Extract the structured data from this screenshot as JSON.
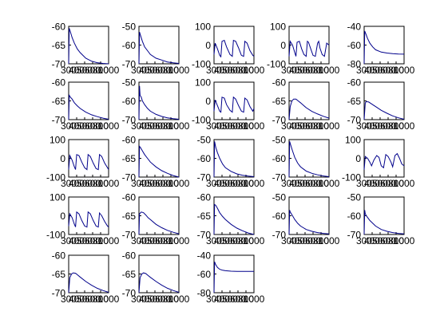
{
  "chart_data": {
    "type": "line",
    "grid": false,
    "legend": "none",
    "line_color": "#00008B",
    "axis_color": "#000000",
    "panels": [
      {
        "ylim": [
          -70,
          -60
        ],
        "yticks": [
          "-60",
          "-65",
          "-70"
        ],
        "xticks": [
          "300",
          "400",
          "500",
          "600",
          "800",
          "1000"
        ],
        "x": [
          300,
          310,
          320,
          340,
          360,
          400,
          450,
          500,
          600,
          700,
          800,
          900,
          1000
        ],
        "y": [
          -70,
          -60.5,
          -61,
          -62,
          -63,
          -64.5,
          -66,
          -67,
          -68.5,
          -69.3,
          -69.7,
          -69.9,
          -70
        ]
      },
      {
        "ylim": [
          -70,
          -50
        ],
        "yticks": [
          "-50",
          "-60",
          "-70"
        ],
        "xticks": [
          "300",
          "400",
          "500",
          "600",
          "800",
          "1000"
        ],
        "x": [
          300,
          310,
          330,
          360,
          400,
          450,
          500,
          600,
          700,
          800,
          900,
          1000
        ],
        "y": [
          -70,
          -53,
          -55,
          -58,
          -61,
          -63,
          -65,
          -67,
          -68,
          -69,
          -69.5,
          -69.8
        ]
      },
      {
        "ylim": [
          -100,
          100
        ],
        "yticks": [
          "100",
          "0",
          "-100"
        ],
        "xticks": [
          "300",
          "400",
          "500",
          "600",
          "800",
          "1000"
        ],
        "x": [
          300,
          320,
          360,
          400,
          420,
          440,
          480,
          520,
          580,
          620,
          640,
          680,
          730,
          780,
          820,
          840,
          880,
          930,
          980,
          1000
        ],
        "y": [
          -50,
          10,
          -20,
          -55,
          -62,
          20,
          25,
          -10,
          -50,
          -60,
          25,
          20,
          -15,
          -55,
          -60,
          20,
          10,
          -30,
          -55,
          -60
        ]
      },
      {
        "ylim": [
          -100,
          100
        ],
        "yticks": [
          "100",
          "0",
          "-100"
        ],
        "xticks": [
          "300",
          "400",
          "500",
          "600",
          "800",
          "1000"
        ],
        "x": [
          300,
          320,
          360,
          400,
          420,
          440,
          480,
          520,
          560,
          600,
          620,
          640,
          680,
          720,
          760,
          800,
          820,
          840,
          880,
          920,
          960,
          1000
        ],
        "y": [
          -60,
          20,
          0,
          -40,
          -60,
          15,
          20,
          -20,
          -50,
          -60,
          20,
          15,
          -20,
          -55,
          -60,
          10,
          20,
          -15,
          -50,
          -60,
          10,
          0
        ]
      },
      {
        "ylim": [
          -80,
          -40
        ],
        "yticks": [
          "-40",
          "-60",
          "-80"
        ],
        "xticks": [
          "300",
          "400",
          "500",
          "600",
          "800",
          "1000"
        ],
        "x": [
          300,
          310,
          330,
          360,
          400,
          450,
          500,
          600,
          700,
          800,
          900,
          1000
        ],
        "y": [
          -80,
          -45,
          -48,
          -53,
          -58,
          -62,
          -65,
          -67.5,
          -68.5,
          -69.2,
          -69.5,
          -69.7
        ]
      },
      {
        "ylim": [
          -70,
          -60
        ],
        "yticks": [
          "-60",
          "-65",
          "-70"
        ],
        "xticks": [
          "300",
          "400",
          "500",
          "600",
          "800",
          "1000"
        ],
        "x": [
          300,
          310,
          330,
          360,
          400,
          450,
          500,
          600,
          700,
          800,
          900,
          1000
        ],
        "y": [
          -70,
          -63.5,
          -64,
          -64.5,
          -65.5,
          -66.3,
          -67,
          -68,
          -68.7,
          -69.2,
          -69.6,
          -69.9
        ]
      },
      {
        "ylim": [
          -70,
          -50
        ],
        "yticks": [
          "-50",
          "-60",
          "-70"
        ],
        "xticks": [
          "300",
          "400",
          "500",
          "600",
          "800",
          "1000"
        ],
        "x": [
          300,
          310,
          320,
          340,
          360,
          400,
          450,
          500,
          600,
          700,
          800,
          900,
          1000
        ],
        "y": [
          -70,
          -52,
          -57,
          -58,
          -60,
          -62,
          -64,
          -65.5,
          -67.2,
          -68.3,
          -69,
          -69.5,
          -69.8
        ]
      },
      {
        "ylim": [
          -100,
          100
        ],
        "yticks": [
          "100",
          "0",
          "-100"
        ],
        "xticks": [
          "300",
          "400",
          "500",
          "600",
          "800",
          "1000"
        ],
        "x": [
          300,
          320,
          360,
          400,
          420,
          440,
          480,
          520,
          580,
          620,
          640,
          680,
          730,
          780,
          820,
          840,
          880,
          930,
          980,
          1000
        ],
        "y": [
          -55,
          5,
          -25,
          -55,
          -60,
          20,
          15,
          -20,
          -50,
          -60,
          20,
          10,
          -25,
          -55,
          -60,
          15,
          5,
          -30,
          -55,
          -40
        ]
      },
      {
        "ylim": [
          -70,
          -60
        ],
        "yticks": [
          "-60",
          "-65",
          "-70"
        ],
        "xticks": [
          "300",
          "400",
          "500",
          "600",
          "800",
          "1000"
        ],
        "x": [
          300,
          320,
          350,
          380,
          420,
          460,
          500,
          600,
          700,
          800,
          900,
          1000
        ],
        "y": [
          -70,
          -66.5,
          -65,
          -64.5,
          -64.5,
          -65,
          -65.5,
          -66.8,
          -67.8,
          -68.5,
          -69.1,
          -69.6
        ]
      },
      {
        "ylim": [
          -70,
          -60
        ],
        "yticks": [
          "-60",
          "-65",
          "-70"
        ],
        "xticks": [
          "300",
          "400",
          "500",
          "600",
          "800",
          "1000"
        ],
        "x": [
          300,
          320,
          340,
          380,
          420,
          460,
          500,
          600,
          700,
          800,
          900,
          1000
        ],
        "y": [
          -70,
          -65.5,
          -65.2,
          -65.3,
          -65.7,
          -66.1,
          -66.5,
          -67.5,
          -68.3,
          -69,
          -69.5,
          -69.9
        ]
      },
      {
        "ylim": [
          -100,
          100
        ],
        "yticks": [
          "100",
          "0",
          "-100"
        ],
        "xticks": [
          "300",
          "400",
          "500",
          "600",
          "800",
          "1000"
        ],
        "x": [
          300,
          320,
          360,
          400,
          420,
          440,
          480,
          530,
          580,
          620,
          640,
          680,
          730,
          780,
          820,
          840,
          880,
          930,
          980,
          1000
        ],
        "y": [
          -60,
          15,
          -10,
          -45,
          -60,
          20,
          15,
          -20,
          -50,
          -60,
          20,
          10,
          -25,
          -55,
          -60,
          20,
          10,
          -25,
          -50,
          -60
        ]
      },
      {
        "ylim": [
          -70,
          -60
        ],
        "yticks": [
          "-60",
          "-65",
          "-70"
        ],
        "xticks": [
          "300",
          "400",
          "500",
          "600",
          "800",
          "1000"
        ],
        "x": [
          300,
          310,
          330,
          360,
          400,
          450,
          500,
          600,
          700,
          800,
          900,
          1000
        ],
        "y": [
          -70,
          -61.8,
          -62.2,
          -63,
          -64,
          -65,
          -66,
          -67.3,
          -68.3,
          -69,
          -69.6,
          -70
        ]
      },
      {
        "ylim": [
          -70,
          -50
        ],
        "yticks": [
          "-50",
          "-60",
          "-70"
        ],
        "xticks": [
          "300",
          "400",
          "500",
          "600",
          "800",
          "1000"
        ],
        "x": [
          300,
          310,
          330,
          360,
          400,
          450,
          500,
          600,
          700,
          800,
          900,
          1000
        ],
        "y": [
          -70,
          -51,
          -54,
          -57,
          -60,
          -63,
          -65,
          -67,
          -68.3,
          -69,
          -69.5,
          -69.8
        ]
      },
      {
        "ylim": [
          -70,
          -50
        ],
        "yticks": [
          "-50",
          "-60",
          "-70"
        ],
        "xticks": [
          "300",
          "400",
          "500",
          "600",
          "800",
          "1000"
        ],
        "x": [
          300,
          310,
          330,
          360,
          400,
          450,
          500,
          600,
          700,
          800,
          900,
          1000
        ],
        "y": [
          -70,
          -51,
          -53,
          -56,
          -59.5,
          -62.5,
          -64.5,
          -66.8,
          -68,
          -68.8,
          -69.4,
          -69.8
        ]
      },
      {
        "ylim": [
          -100,
          100
        ],
        "yticks": [
          "100",
          "0",
          "-100"
        ],
        "xticks": [
          "300",
          "400",
          "500",
          "600",
          "800",
          "1000"
        ],
        "x": [
          300,
          320,
          360,
          400,
          430,
          470,
          520,
          560,
          600,
          640,
          680,
          720,
          770,
          800,
          840,
          880,
          920,
          960,
          1000
        ],
        "y": [
          -60,
          10,
          0,
          -20,
          -40,
          -10,
          15,
          5,
          -40,
          -50,
          20,
          10,
          -20,
          -45,
          15,
          25,
          0,
          -30,
          -40
        ]
      },
      {
        "ylim": [
          -100,
          100
        ],
        "yticks": [
          "100",
          "0",
          "-100"
        ],
        "xticks": [
          "300",
          "400",
          "500",
          "600",
          "800",
          "1000"
        ],
        "x": [
          300,
          320,
          360,
          400,
          420,
          440,
          480,
          530,
          580,
          620,
          640,
          680,
          730,
          780,
          820,
          840,
          880,
          930,
          980,
          1000
        ],
        "y": [
          -55,
          10,
          -10,
          -45,
          -60,
          20,
          10,
          -25,
          -55,
          -60,
          20,
          10,
          -25,
          -55,
          -60,
          15,
          0,
          -30,
          -55,
          -60
        ]
      },
      {
        "ylim": [
          -70,
          -60
        ],
        "yticks": [
          "-60",
          "-65",
          "-70"
        ],
        "xticks": [
          "300",
          "400",
          "500",
          "600",
          "800",
          "1000"
        ],
        "x": [
          300,
          310,
          340,
          380,
          420,
          460,
          500,
          600,
          700,
          800,
          900,
          1000
        ],
        "y": [
          -70,
          -64.5,
          -64,
          -64.2,
          -64.8,
          -65.5,
          -66,
          -67.3,
          -68.2,
          -68.9,
          -69.4,
          -69.8
        ]
      },
      {
        "ylim": [
          -70,
          -60
        ],
        "yticks": [
          "-60",
          "-65",
          "-70"
        ],
        "xticks": [
          "300",
          "400",
          "500",
          "600",
          "800",
          "1000"
        ],
        "x": [
          300,
          310,
          330,
          360,
          400,
          450,
          500,
          600,
          700,
          800,
          900,
          1000
        ],
        "y": [
          -70,
          -62,
          -62.2,
          -63,
          -64.2,
          -65.2,
          -66,
          -67.3,
          -68.3,
          -69,
          -69.6,
          -70
        ]
      },
      {
        "ylim": [
          -70,
          -50
        ],
        "yticks": [
          "-50",
          "-60",
          "-70"
        ],
        "xticks": [
          "300",
          "400",
          "500",
          "600",
          "800",
          "1000"
        ],
        "x": [
          300,
          310,
          320,
          350,
          400,
          450,
          500,
          600,
          700,
          800,
          900,
          1000
        ],
        "y": [
          -70,
          -57,
          -58,
          -59.5,
          -62,
          -64,
          -65.5,
          -67.3,
          -68.3,
          -69,
          -69.4,
          -69.7
        ]
      },
      {
        "ylim": [
          -70,
          -50
        ],
        "yticks": [
          "-50",
          "-60",
          "-70"
        ],
        "xticks": [
          "300",
          "400",
          "500",
          "600",
          "800",
          "1000"
        ],
        "x": [
          300,
          310,
          320,
          350,
          400,
          450,
          500,
          600,
          700,
          800,
          900,
          1000
        ],
        "y": [
          -70,
          -57,
          -59,
          -60.5,
          -62.5,
          -64,
          -65.5,
          -67.3,
          -68.3,
          -69,
          -69.4,
          -69.7
        ]
      },
      {
        "ylim": [
          -70,
          -60
        ],
        "yticks": [
          "-60",
          "-65",
          "-70"
        ],
        "xticks": [
          "300",
          "400",
          "500",
          "600",
          "800",
          "1000"
        ],
        "x": [
          300,
          320,
          350,
          380,
          420,
          460,
          500,
          600,
          700,
          800,
          900,
          1000
        ],
        "y": [
          -70,
          -66,
          -65,
          -64.7,
          -64.8,
          -65.3,
          -65.8,
          -67,
          -68,
          -68.8,
          -69.4,
          -69.9
        ]
      },
      {
        "ylim": [
          -70,
          -60
        ],
        "yticks": [
          "-60",
          "-65",
          "-70"
        ],
        "xticks": [
          "300",
          "400",
          "500",
          "600",
          "800",
          "1000"
        ],
        "x": [
          300,
          320,
          350,
          380,
          420,
          460,
          500,
          600,
          700,
          800,
          900,
          1000
        ],
        "y": [
          -70,
          -66,
          -65,
          -64.7,
          -64.9,
          -65.4,
          -65.9,
          -67,
          -68,
          -68.8,
          -69.4,
          -69.9
        ]
      },
      {
        "ylim": [
          -80,
          -40
        ],
        "yticks": [
          "-40",
          "-60",
          "-80"
        ],
        "xticks": [
          "300",
          "400",
          "500",
          "600",
          "800",
          "1000"
        ],
        "x": [
          300,
          310,
          330,
          360,
          400,
          450,
          500,
          600,
          700,
          800,
          900,
          1000
        ],
        "y": [
          -80,
          -47,
          -50,
          -53,
          -55,
          -56,
          -56.5,
          -57,
          -57.2,
          -57.3,
          -57.3,
          -57.3
        ]
      }
    ]
  }
}
